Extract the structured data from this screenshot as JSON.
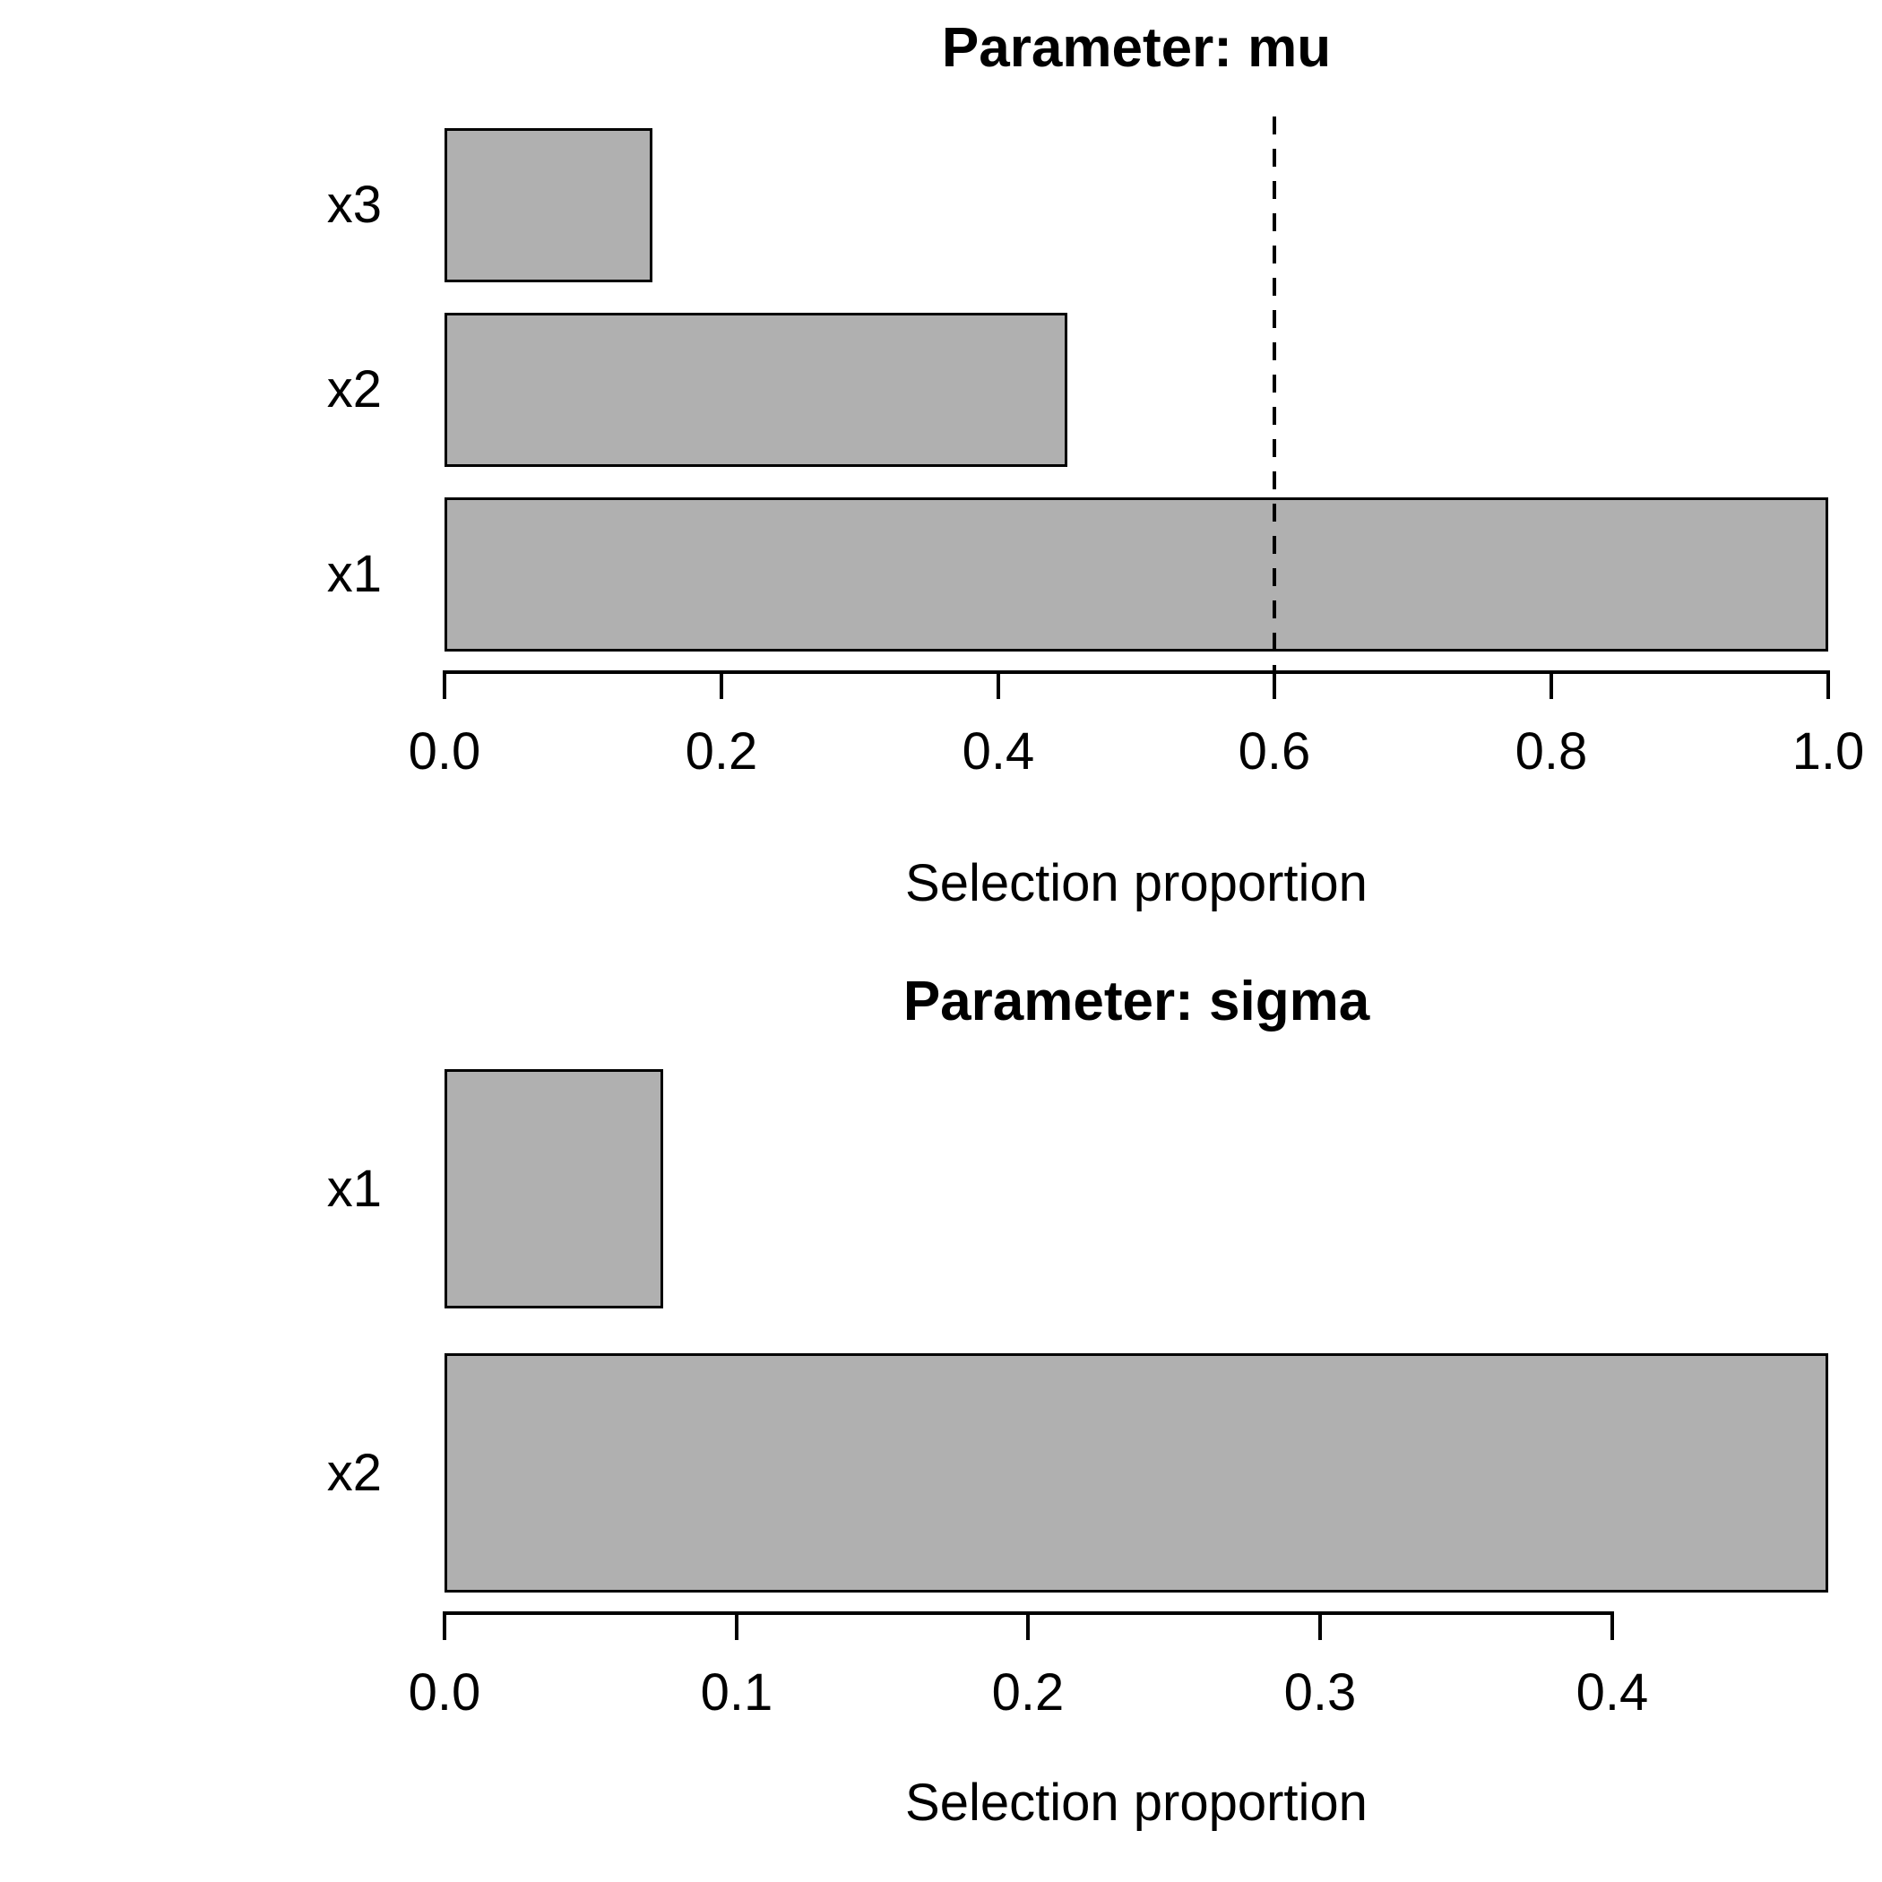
{
  "figure": {
    "background": "#ffffff",
    "text_color": "#000000"
  },
  "chart_data": [
    {
      "type": "bar",
      "orientation": "horizontal",
      "title": "Parameter: mu",
      "xlabel": "Selection proportion",
      "categories": [
        "x3",
        "x2",
        "x1"
      ],
      "values": [
        0.15,
        0.45,
        1.0
      ],
      "xlim": [
        0,
        1.0
      ],
      "xticks": [
        0.0,
        0.2,
        0.4,
        0.6,
        0.8,
        1.0
      ],
      "xtick_labels": [
        "0.0",
        "0.2",
        "0.4",
        "0.6",
        "0.8",
        "1.0"
      ],
      "threshold_line_x": 0.6,
      "threshold_line_style": "dashed",
      "bar_fill": "#b0b0b0",
      "bar_border": "#000000",
      "grid": false,
      "legend": false
    },
    {
      "type": "bar",
      "orientation": "horizontal",
      "title": "Parameter: sigma",
      "xlabel": "Selection proportion",
      "categories": [
        "x1",
        "x2"
      ],
      "values": [
        0.075,
        0.474
      ],
      "xlim": [
        0,
        0.474
      ],
      "xticks": [
        0.0,
        0.1,
        0.2,
        0.3,
        0.4
      ],
      "xtick_labels": [
        "0.0",
        "0.1",
        "0.2",
        "0.3",
        "0.4"
      ],
      "threshold_line_x": null,
      "threshold_line_style": null,
      "bar_fill": "#b0b0b0",
      "bar_border": "#000000",
      "grid": false,
      "legend": false
    }
  ]
}
